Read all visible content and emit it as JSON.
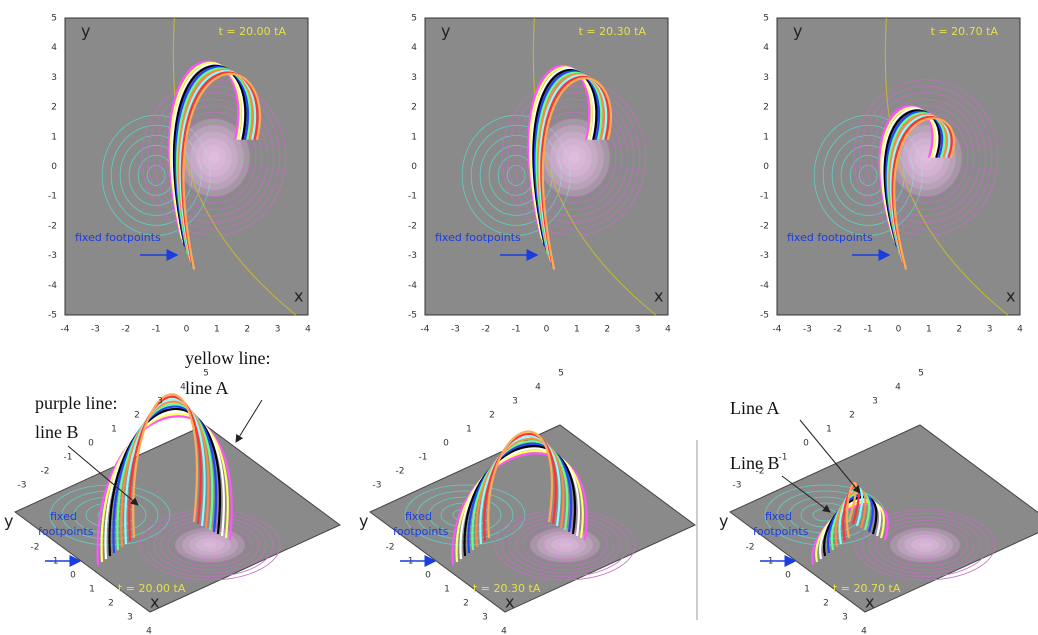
{
  "top_panels": [
    {
      "y_label": "y",
      "x_label": "x",
      "time": "t = 20.00 tA",
      "annotation": "fixed footpoints",
      "xticks": [
        "-4",
        "-3",
        "-2",
        "-1",
        "0",
        "1",
        "2",
        "3",
        "4"
      ],
      "yticks": [
        "5",
        "4",
        "3",
        "2",
        "1",
        "0",
        "-1",
        "-2",
        "-3",
        "-4",
        "-5"
      ]
    },
    {
      "y_label": "y",
      "x_label": "x",
      "time": "t = 20.30 tA",
      "annotation": "fixed footpoints",
      "xticks": [
        "-4",
        "-3",
        "-2",
        "-1",
        "0",
        "1",
        "2",
        "3",
        "4"
      ],
      "yticks": [
        "5",
        "4",
        "3",
        "2",
        "1",
        "0",
        "-1",
        "-2",
        "-3",
        "-4",
        "-5"
      ]
    },
    {
      "y_label": "y",
      "x_label": "x",
      "time": "t = 20.70 tA",
      "annotation": "fixed footpoints",
      "xticks": [
        "-4",
        "-3",
        "-2",
        "-1",
        "0",
        "1",
        "2",
        "3",
        "4"
      ],
      "yticks": [
        "5",
        "4",
        "3",
        "2",
        "1",
        "0",
        "-1",
        "-2",
        "-3",
        "-4",
        "-5"
      ]
    }
  ],
  "bottom_panels": [
    {
      "y_label": "y",
      "x_label": "x",
      "time": "t = 20.00 tA",
      "annotation": [
        "fixed",
        "footpoints"
      ],
      "yticks": [
        "-3",
        "-2",
        "-1",
        "0",
        "1",
        "2",
        "3",
        "4",
        "5"
      ],
      "xticks": [
        "-2",
        "-1",
        "0",
        "1",
        "2",
        "3",
        "4"
      ],
      "labels": [
        "yellow line:",
        "line A",
        "purple line:",
        "line B"
      ]
    },
    {
      "y_label": "y",
      "x_label": "x",
      "time": "t = 20.30 tA",
      "annotation": [
        "fixed",
        "footpoints"
      ],
      "yticks": [
        "-3",
        "-2",
        "-1",
        "0",
        "1",
        "2",
        "3",
        "4",
        "5"
      ],
      "xticks": [
        "-2",
        "-1",
        "0",
        "1",
        "2",
        "3",
        "4"
      ]
    },
    {
      "y_label": "y",
      "x_label": "x",
      "time": "t = 20.70 tA",
      "annotation": [
        "fixed",
        "footpoints"
      ],
      "yticks": [
        "-3",
        "-2",
        "-1",
        "0",
        "1",
        "2",
        "3",
        "4",
        "5"
      ],
      "xticks": [
        "-2",
        "-1",
        "0",
        "1",
        "2",
        "3",
        "4"
      ],
      "labels": [
        "Line A",
        "Line B"
      ]
    }
  ]
}
